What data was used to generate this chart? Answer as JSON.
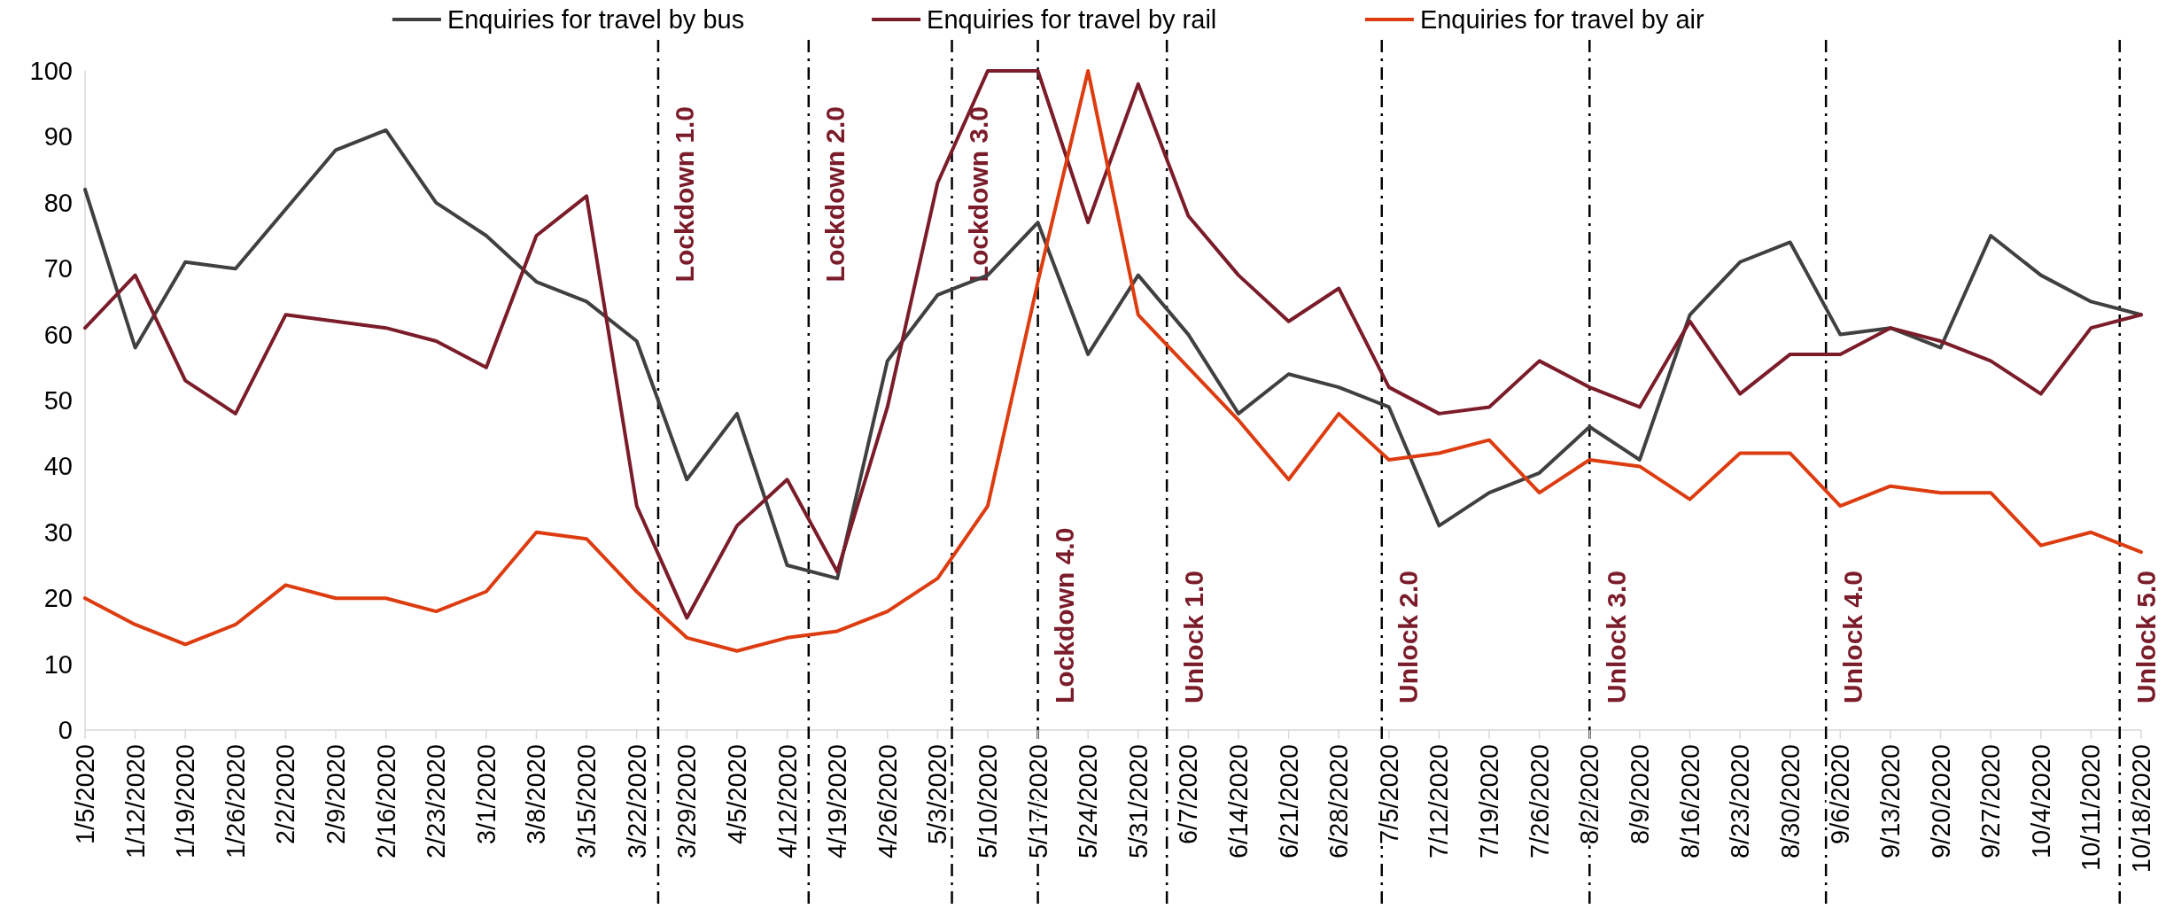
{
  "chart_data": {
    "type": "line",
    "x": [
      "2020-01-05",
      "2020-01-12",
      "2020-01-19",
      "2020-01-26",
      "2020-02-02",
      "2020-02-09",
      "2020-02-16",
      "2020-02-23",
      "2020-03-01",
      "2020-03-08",
      "2020-03-15",
      "2020-03-22",
      "2020-03-29",
      "2020-04-05",
      "2020-04-12",
      "2020-04-19",
      "2020-04-26",
      "2020-05-03",
      "2020-05-10",
      "2020-05-17",
      "2020-05-24",
      "2020-05-31",
      "2020-06-07",
      "2020-06-14",
      "2020-06-21",
      "2020-06-28",
      "2020-07-05",
      "2020-07-12",
      "2020-07-19",
      "2020-07-26",
      "2020-08-02",
      "2020-08-09",
      "2020-08-16",
      "2020-08-23",
      "2020-08-30",
      "2020-09-06",
      "2020-09-13",
      "2020-09-20",
      "2020-09-27",
      "2020-10-04",
      "2020-10-11",
      "2020-10-18"
    ],
    "series": [
      {
        "name": "Enquiries for travel by bus",
        "color": "#404040",
        "values": [
          82,
          58,
          71,
          70,
          79,
          88,
          91,
          80,
          75,
          68,
          65,
          59,
          38,
          48,
          25,
          23,
          56,
          66,
          69,
          77,
          57,
          69,
          60,
          48,
          54,
          52,
          49,
          31,
          36,
          39,
          46,
          41,
          63,
          71,
          74,
          60,
          61,
          58,
          75,
          69,
          65,
          63
        ]
      },
      {
        "name": "Enquiries for travel by rail",
        "color": "#7b1c2a",
        "values": [
          61,
          69,
          53,
          48,
          63,
          62,
          61,
          59,
          55,
          75,
          81,
          34,
          17,
          31,
          38,
          24,
          49,
          83,
          100,
          100,
          77,
          98,
          78,
          69,
          62,
          67,
          52,
          48,
          49,
          56,
          52,
          49,
          62,
          51,
          57,
          57,
          61,
          59,
          56,
          51,
          61,
          63
        ]
      },
      {
        "name": "Enquiries for travel by air",
        "color": "#dd3c10",
        "values": [
          20,
          16,
          13,
          16,
          22,
          20,
          20,
          18,
          21,
          30,
          29,
          21,
          14,
          12,
          14,
          15,
          18,
          23,
          34,
          68,
          100,
          63,
          55,
          47,
          38,
          48,
          41,
          42,
          44,
          36,
          41,
          40,
          35,
          42,
          42,
          34,
          37,
          36,
          36,
          28,
          30,
          27
        ]
      }
    ],
    "xlim": [
      "2020-01-05",
      "2020-10-18"
    ],
    "xticks": [
      {
        "value": "2020-01-05",
        "label": "1/5/2020"
      },
      {
        "value": "2020-01-12",
        "label": "1/12/2020"
      },
      {
        "value": "2020-01-19",
        "label": "1/19/2020"
      },
      {
        "value": "2020-01-26",
        "label": "1/26/2020"
      },
      {
        "value": "2020-02-02",
        "label": "2/2/2020"
      },
      {
        "value": "2020-02-09",
        "label": "2/9/2020"
      },
      {
        "value": "2020-02-16",
        "label": "2/16/2020"
      },
      {
        "value": "2020-02-23",
        "label": "2/23/2020"
      },
      {
        "value": "2020-03-01",
        "label": "3/1/2020"
      },
      {
        "value": "2020-03-08",
        "label": "3/8/2020"
      },
      {
        "value": "2020-03-15",
        "label": "3/15/2020"
      },
      {
        "value": "2020-03-22",
        "label": "3/22/2020"
      },
      {
        "value": "2020-03-29",
        "label": "3/29/2020"
      },
      {
        "value": "2020-04-05",
        "label": "4/5/2020"
      },
      {
        "value": "2020-04-12",
        "label": "4/12/2020"
      },
      {
        "value": "2020-04-19",
        "label": "4/19/2020"
      },
      {
        "value": "2020-04-26",
        "label": "4/26/2020"
      },
      {
        "value": "2020-05-03",
        "label": "5/3/2020"
      },
      {
        "value": "2020-05-10",
        "label": "5/10/2020"
      },
      {
        "value": "2020-05-17",
        "label": "5/17/2020"
      },
      {
        "value": "2020-05-24",
        "label": "5/24/2020"
      },
      {
        "value": "2020-05-31",
        "label": "5/31/2020"
      },
      {
        "value": "2020-06-07",
        "label": "6/7/2020"
      },
      {
        "value": "2020-06-14",
        "label": "6/14/2020"
      },
      {
        "value": "2020-06-21",
        "label": "6/21/2020"
      },
      {
        "value": "2020-06-28",
        "label": "6/28/2020"
      },
      {
        "value": "2020-07-05",
        "label": "7/5/2020"
      },
      {
        "value": "2020-07-12",
        "label": "7/12/2020"
      },
      {
        "value": "2020-07-19",
        "label": "7/19/2020"
      },
      {
        "value": "2020-07-26",
        "label": "7/26/2020"
      },
      {
        "value": "2020-08-02",
        "label": "8/2/2020"
      },
      {
        "value": "2020-08-09",
        "label": "8/9/2020"
      },
      {
        "value": "2020-08-16",
        "label": "8/16/2020"
      },
      {
        "value": "2020-08-23",
        "label": "8/23/2020"
      },
      {
        "value": "2020-08-30",
        "label": "8/30/2020"
      },
      {
        "value": "2020-09-06",
        "label": "9/6/2020"
      },
      {
        "value": "2020-09-13",
        "label": "9/13/2020"
      },
      {
        "value": "2020-09-20",
        "label": "9/20/2020"
      },
      {
        "value": "2020-09-27",
        "label": "9/27/2020"
      },
      {
        "value": "2020-10-04",
        "label": "10/4/2020"
      },
      {
        "value": "2020-10-11",
        "label": "10/11/2020"
      },
      {
        "value": "2020-10-18",
        "label": "10/18/2020"
      }
    ],
    "ylim": [
      0,
      100
    ],
    "yticks": [
      0,
      10,
      20,
      30,
      40,
      50,
      60,
      70,
      80,
      90,
      100
    ],
    "legend": "top",
    "ref_lines": [
      {
        "axis": "x",
        "value": "2020-03-25",
        "label": "Lockdown 1.0",
        "color": "#000000"
      },
      {
        "axis": "x",
        "value": "2020-04-15",
        "label": "Lockdown 2.0",
        "color": "#000000"
      },
      {
        "axis": "x",
        "value": "2020-05-05",
        "label": "Lockdown 3.0",
        "color": "#000000"
      },
      {
        "axis": "x",
        "value": "2020-05-17",
        "label": "Lockdown 4.0",
        "color": "#000000"
      },
      {
        "axis": "x",
        "value": "2020-06-04",
        "label": "Unlock 1.0",
        "color": "#000000"
      },
      {
        "axis": "x",
        "value": "2020-07-04",
        "label": "Unlock 2.0",
        "color": "#000000"
      },
      {
        "axis": "x",
        "value": "2020-08-02",
        "label": "Unlock 3.0",
        "color": "#000000"
      },
      {
        "axis": "x",
        "value": "2020-09-04",
        "label": "Unlock 4.0",
        "color": "#000000"
      },
      {
        "axis": "x",
        "value": "2020-10-15",
        "label": "Unlock 5.0",
        "color": "#000000"
      }
    ]
  }
}
